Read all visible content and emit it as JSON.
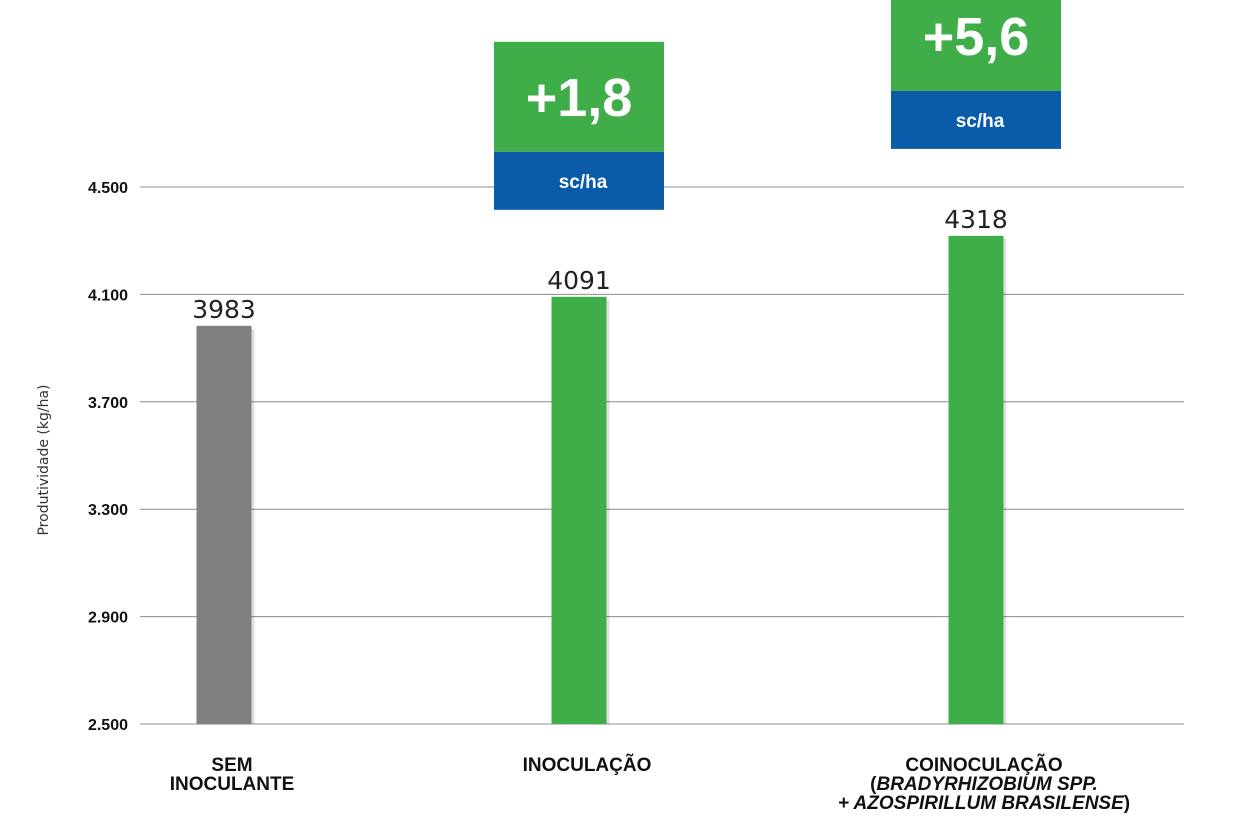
{
  "colors": {
    "grid": "#8c8c8c",
    "control_bar": "#7f7f7f",
    "treatment_bar": "#3fae49",
    "badge_top": "#3fae49",
    "badge_bottom": "#0a5ca8"
  },
  "chart_data": {
    "type": "bar",
    "ylabel": "Produtividade (kg/ha)",
    "ylim": [
      2500,
      4500
    ],
    "yticks": [
      2500,
      2900,
      3300,
      3700,
      4100,
      4500
    ],
    "ytick_labels": [
      "2.500",
      "2.900",
      "3.300",
      "3.700",
      "4.100",
      "4.500"
    ],
    "grid": true,
    "categories": [
      {
        "lines": [
          {
            "parts": [
              {
                "text": "SEM",
                "italic": false
              }
            ]
          },
          {
            "parts": [
              {
                "text": "INOCULANTE",
                "italic": false
              }
            ]
          }
        ]
      },
      {
        "lines": [
          {
            "parts": [
              {
                "text": "INOCULAÇÃO",
                "italic": false
              }
            ]
          }
        ]
      },
      {
        "lines": [
          {
            "parts": [
              {
                "text": "COINOCULAÇÃO",
                "italic": false
              }
            ]
          },
          {
            "parts": [
              {
                "text": "(",
                "italic": false
              },
              {
                "text": "BRADYRHIZOBIUM SPP.",
                "italic": true
              }
            ]
          },
          {
            "parts": [
              {
                "text": "+ AZOSPIRILLUM BRASILENSE",
                "italic": true
              },
              {
                "text": ")",
                "italic": false
              }
            ]
          }
        ]
      }
    ],
    "values": [
      3983,
      4091,
      4318
    ],
    "value_labels": [
      "3983",
      "4091",
      "4318"
    ],
    "bar_colors": [
      "#7f7f7f",
      "#3fae49",
      "#3fae49"
    ],
    "annotations": [
      null,
      {
        "value": "+1,8",
        "unit": "sc/ha"
      },
      {
        "value": "+5,6",
        "unit": "sc/ha"
      }
    ]
  }
}
